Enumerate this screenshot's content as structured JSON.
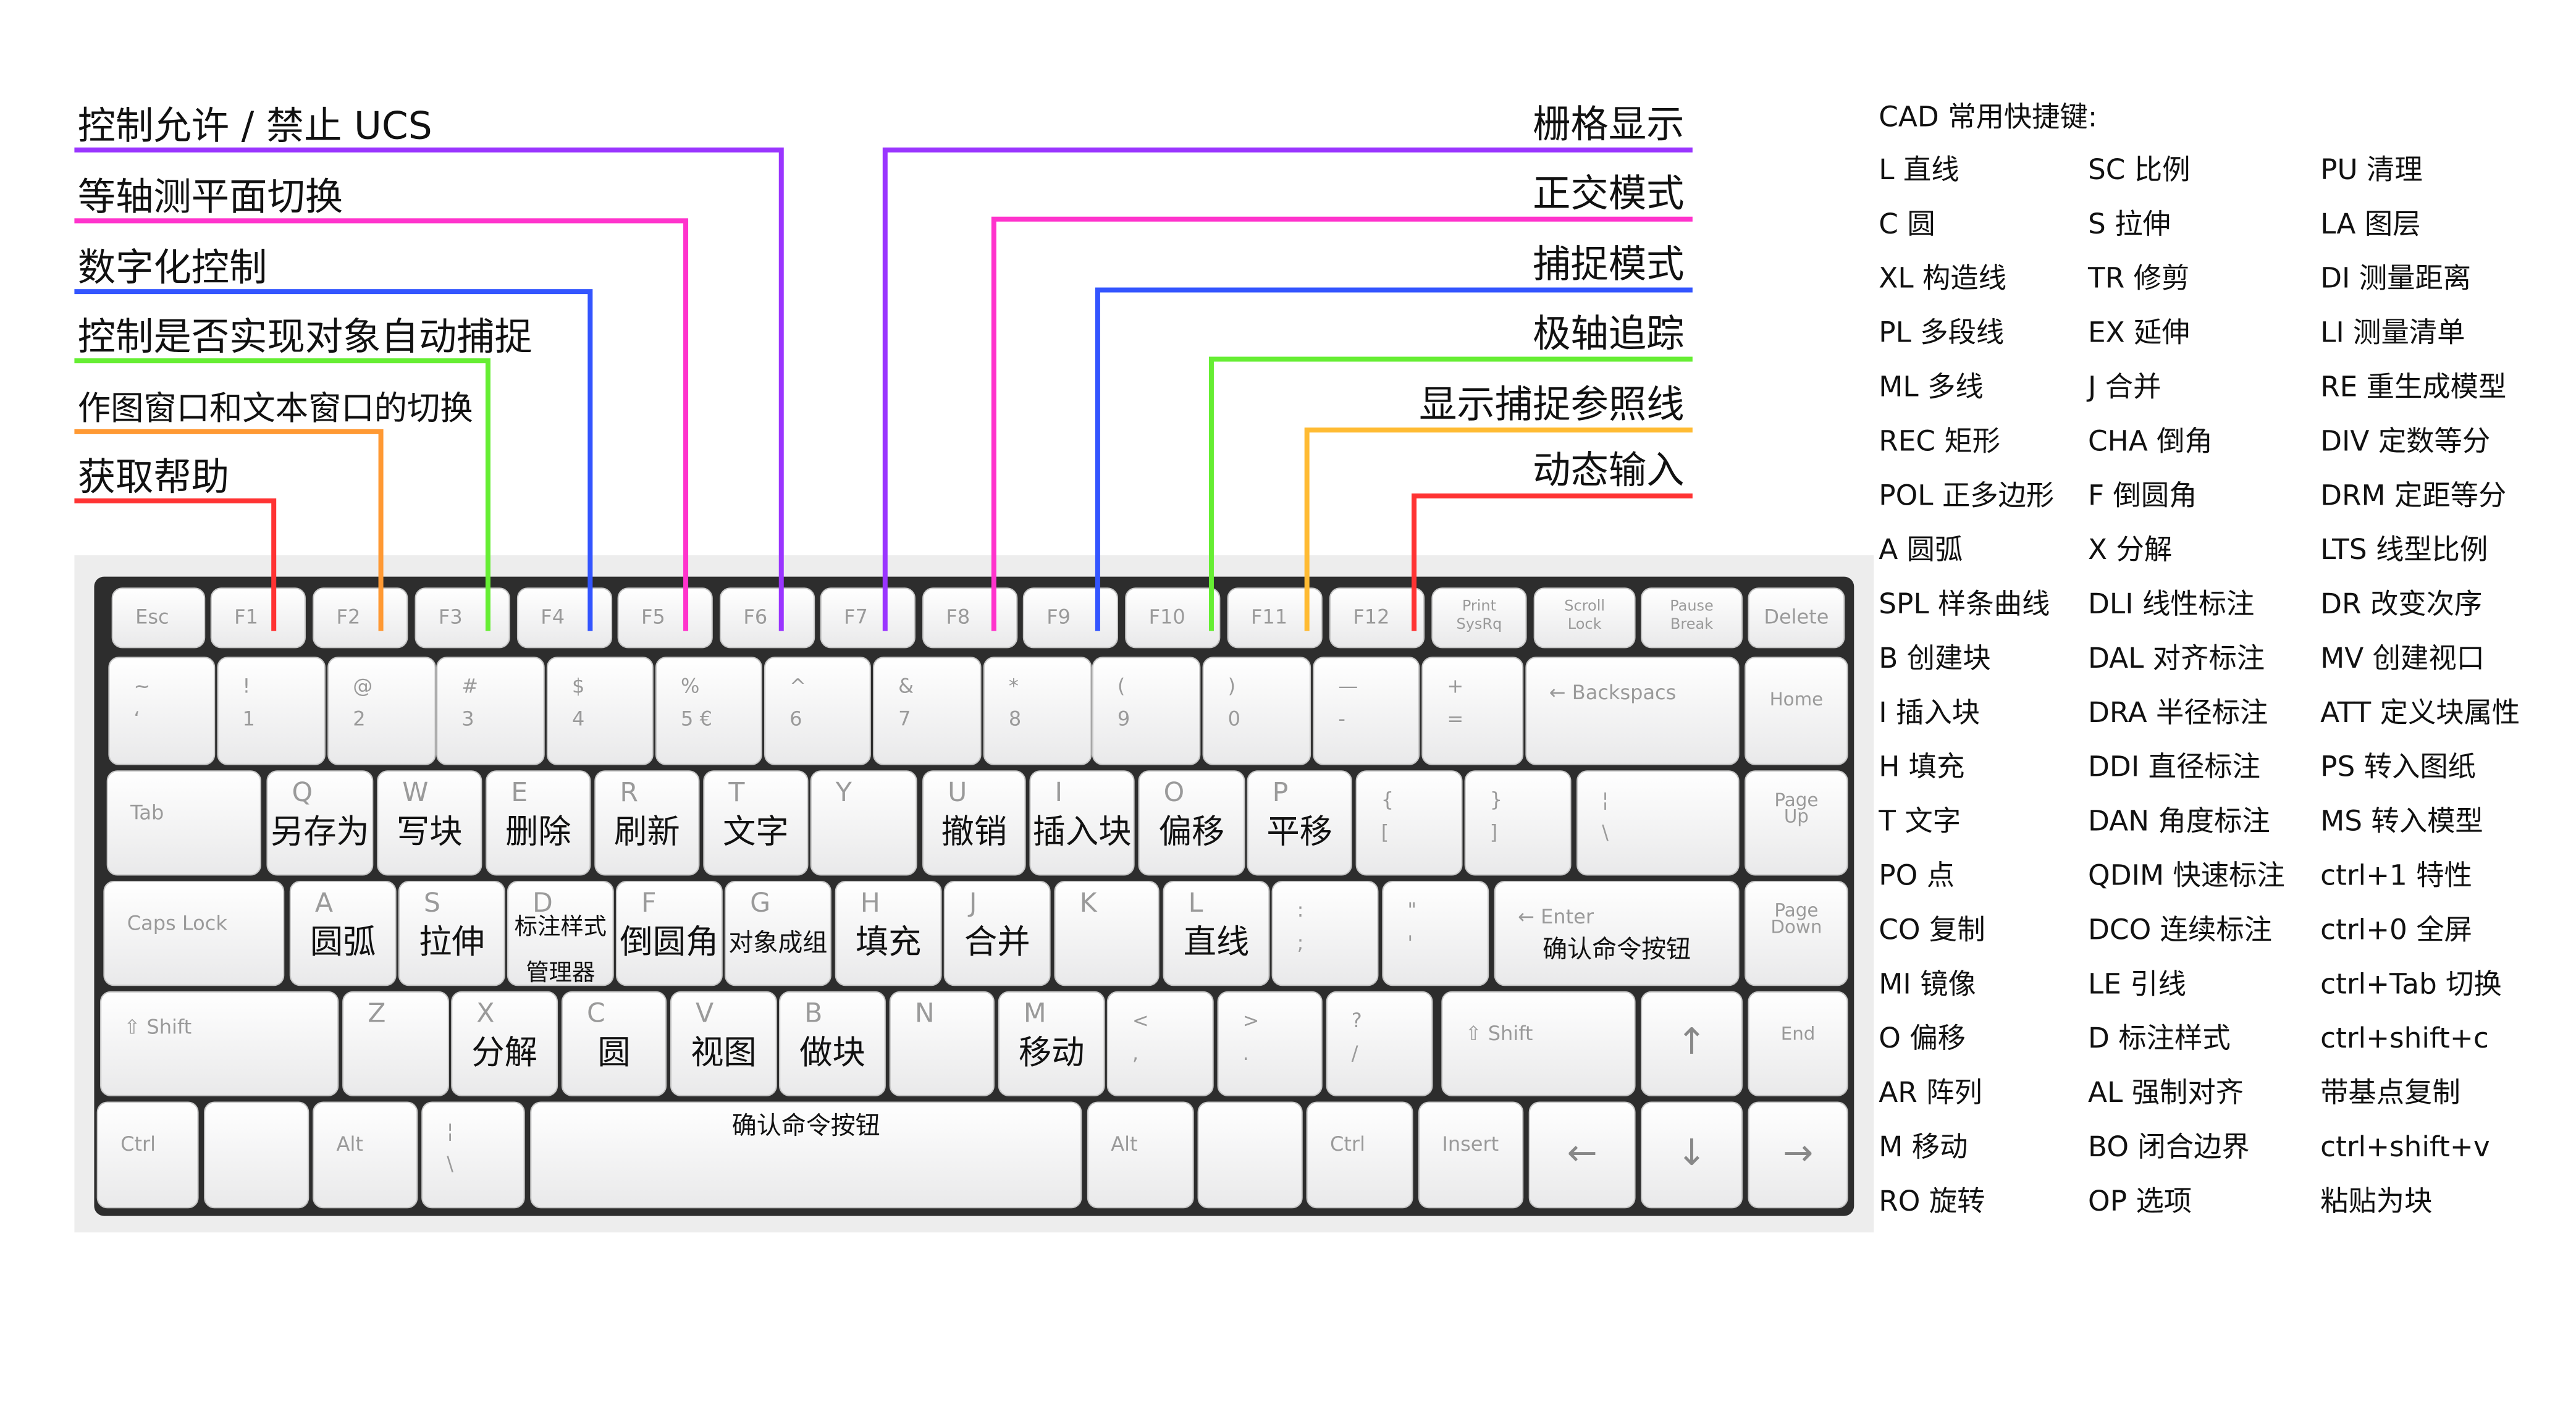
{
  "callouts_left": [
    {
      "text": "控制允许 / 禁止 UCS",
      "color": "#9a35ff"
    },
    {
      "text": "等轴测平面切换",
      "color": "#ff33cc"
    },
    {
      "text": "数字化控制",
      "color": "#3355ff"
    },
    {
      "text": "控制是否实现对象自动捕捉",
      "color": "#66ee33"
    },
    {
      "text": "作图窗口和文本窗口的切换",
      "color": "#ff9933"
    },
    {
      "text": "获取帮助",
      "color": "#ff3333"
    }
  ],
  "callouts_right": [
    {
      "text": "栅格显示",
      "color": "#9a35ff"
    },
    {
      "text": "正交模式",
      "color": "#ff33cc"
    },
    {
      "text": "捕捉模式",
      "color": "#3355ff"
    },
    {
      "text": "极轴追踪",
      "color": "#66ee33"
    },
    {
      "text": "显示捕捉参照线",
      "color": "#ffbb33"
    },
    {
      "text": "动态输入",
      "color": "#ff3333"
    }
  ],
  "keyboard": {
    "rows": [
      [
        {
          "lines": [
            "Esc"
          ]
        },
        {
          "lines": [
            "F1"
          ]
        },
        {
          "lines": [
            "F2"
          ]
        },
        {
          "lines": [
            "F3"
          ]
        },
        {
          "lines": [
            "F4"
          ]
        },
        {
          "lines": [
            "F5"
          ]
        },
        {
          "lines": [
            "F6"
          ]
        },
        {
          "lines": [
            "F7"
          ]
        },
        {
          "lines": [
            "F8"
          ]
        },
        {
          "lines": [
            "F9"
          ]
        },
        {
          "lines": [
            "F10"
          ]
        },
        {
          "lines": [
            "F11"
          ]
        },
        {
          "lines": [
            "F12"
          ]
        },
        {
          "lines": [
            "Print",
            "SysRq"
          ]
        },
        {
          "lines": [
            "Scroll",
            "Lock"
          ]
        },
        {
          "lines": [
            "Pause",
            "Break"
          ]
        },
        {
          "lines": [
            "Delete"
          ]
        }
      ],
      [
        {
          "lines": [
            "~",
            "‘"
          ]
        },
        {
          "lines": [
            "!",
            "1"
          ]
        },
        {
          "lines": [
            "@",
            "2"
          ]
        },
        {
          "lines": [
            "#",
            "3"
          ]
        },
        {
          "lines": [
            "$",
            "4"
          ]
        },
        {
          "lines": [
            "%",
            "5 €"
          ]
        },
        {
          "lines": [
            "^",
            "6"
          ]
        },
        {
          "lines": [
            "&",
            "7"
          ]
        },
        {
          "lines": [
            "*",
            "8"
          ]
        },
        {
          "lines": [
            "(",
            "9"
          ]
        },
        {
          "lines": [
            ")",
            "0"
          ]
        },
        {
          "lines": [
            "—",
            "-"
          ]
        },
        {
          "lines": [
            "+",
            "="
          ]
        },
        {
          "lines": [
            "← Backspacs"
          ]
        },
        {
          "lines": [
            "Home"
          ]
        }
      ],
      [
        {
          "lines": [
            "Tab"
          ]
        },
        {
          "lines": [
            "Q"
          ],
          "cad": [
            "另存为"
          ]
        },
        {
          "lines": [
            "W"
          ],
          "cad": [
            "写块"
          ]
        },
        {
          "lines": [
            "E"
          ],
          "cad": [
            "删除"
          ]
        },
        {
          "lines": [
            "R"
          ],
          "cad": [
            "刷新"
          ]
        },
        {
          "lines": [
            "T"
          ],
          "cad": [
            "文字"
          ]
        },
        {
          "lines": [
            "Y"
          ]
        },
        {
          "lines": [
            "U"
          ],
          "cad": [
            "撤销"
          ]
        },
        {
          "lines": [
            "I"
          ],
          "cad": [
            "插入块"
          ]
        },
        {
          "lines": [
            "O"
          ],
          "cad": [
            "偏移"
          ]
        },
        {
          "lines": [
            "P"
          ],
          "cad": [
            "平移"
          ]
        },
        {
          "lines": [
            "{",
            "["
          ]
        },
        {
          "lines": [
            "}",
            "]"
          ]
        },
        {
          "lines": [
            "¦",
            "\\"
          ]
        },
        {
          "lines": [
            "Page",
            "Up"
          ]
        }
      ],
      [
        {
          "lines": [
            "Caps Lock"
          ]
        },
        {
          "lines": [
            "A"
          ],
          "cad": [
            "圆弧"
          ]
        },
        {
          "lines": [
            "S"
          ],
          "cad": [
            "拉伸"
          ]
        },
        {
          "lines": [
            "D"
          ],
          "cad": [
            "标注样式",
            "管理器"
          ]
        },
        {
          "lines": [
            "F"
          ],
          "cad": [
            "倒圆角"
          ]
        },
        {
          "lines": [
            "G"
          ],
          "cad": [
            "对象成组"
          ]
        },
        {
          "lines": [
            "H"
          ],
          "cad": [
            "填充"
          ]
        },
        {
          "lines": [
            "J"
          ],
          "cad": [
            "合并"
          ]
        },
        {
          "lines": [
            "K"
          ]
        },
        {
          "lines": [
            "L"
          ],
          "cad": [
            "直线"
          ]
        },
        {
          "lines": [
            ":",
            ";"
          ]
        },
        {
          "lines": [
            "\"",
            "'"
          ]
        },
        {
          "lines": [
            "← Enter"
          ],
          "cad": [
            "确认命令按钮"
          ]
        },
        {
          "lines": [
            "Page",
            "Down"
          ]
        }
      ],
      [
        {
          "lines": [
            "⇧ Shift"
          ]
        },
        {
          "lines": [
            "Z"
          ]
        },
        {
          "lines": [
            "X"
          ],
          "cad": [
            "分解"
          ]
        },
        {
          "lines": [
            "C"
          ],
          "cad": [
            "圆"
          ]
        },
        {
          "lines": [
            "V"
          ],
          "cad": [
            "视图"
          ]
        },
        {
          "lines": [
            "B"
          ],
          "cad": [
            "做块"
          ]
        },
        {
          "lines": [
            "N"
          ]
        },
        {
          "lines": [
            "M"
          ],
          "cad": [
            "移动"
          ]
        },
        {
          "lines": [
            "<",
            ","
          ]
        },
        {
          "lines": [
            ">",
            "."
          ]
        },
        {
          "lines": [
            "?",
            "/"
          ]
        },
        {
          "lines": [
            "⇧ Shift"
          ]
        },
        {
          "lines": [
            "↑"
          ]
        },
        {
          "lines": [
            "End"
          ]
        }
      ],
      [
        {
          "lines": [
            "Ctrl"
          ]
        },
        {},
        {
          "lines": [
            "Alt"
          ]
        },
        {
          "lines": [
            "¦",
            "\\"
          ]
        },
        {
          "cad": [
            "确认命令按钮"
          ]
        },
        {
          "lines": [
            "Alt"
          ]
        },
        {},
        {
          "lines": [
            "Ctrl"
          ]
        },
        {
          "lines": [
            "Insert"
          ]
        },
        {
          "lines": [
            "←"
          ]
        },
        {
          "lines": [
            "↓"
          ]
        },
        {
          "lines": [
            "→"
          ]
        }
      ]
    ]
  },
  "shortcuts": {
    "title": "CAD 常用快捷键:",
    "columns": [
      [
        "L 直线",
        "C 圆",
        "XL 构造线",
        "PL 多段线",
        "ML 多线",
        "REC 矩形",
        "POL 正多边形",
        "A  圆弧",
        "SPL 样条曲线",
        "B 创建块",
        "I  插入块",
        "H 填充",
        "T 文字",
        "PO 点",
        "CO 复制",
        "MI 镜像",
        "O 偏移",
        "AR 阵列",
        "M  移动",
        "RO 旋转"
      ],
      [
        "SC 比例",
        "S 拉伸",
        "TR 修剪",
        "EX 延伸",
        "J  合并",
        "CHA 倒角",
        "F  倒圆角",
        "X 分解",
        "DLI 线性标注",
        "DAL 对齐标注",
        "DRA 半径标注",
        "DDI 直径标注",
        "DAN 角度标注",
        "QDIM 快速标注",
        "DCO 连续标注",
        "LE 引线",
        "D  标注样式",
        "AL 强制对齐",
        "BO 闭合边界",
        "OP 选项"
      ],
      [
        "PU  清理",
        "LA  图层",
        "DI  测量距离",
        "LI  测量清单",
        "RE  重生成模型",
        "DIV  定数等分",
        "DRM 定距等分",
        "LTS  线型比例",
        "DR  改变次序",
        "MV  创建视口",
        "ATT 定义块属性",
        "PS 转入图纸",
        "MS 转入模型",
        "ctrl+1 特性",
        "ctrl+0 全屏",
        "ctrl+Tab 切换",
        "ctrl+shift+c",
        "带基点复制",
        "ctrl+shift+v",
        "粘贴为块"
      ]
    ]
  }
}
